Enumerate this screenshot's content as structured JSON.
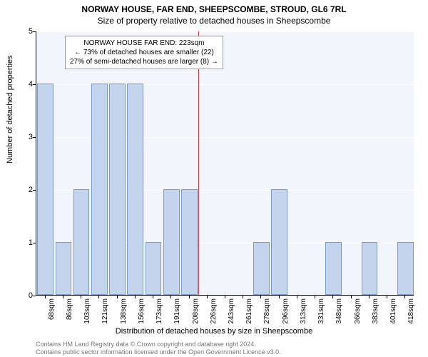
{
  "title1": "NORWAY HOUSE, FAR END, SHEEPSCOMBE, STROUD, GL6 7RL",
  "title2": "Size of property relative to detached houses in Sheepscombe",
  "ylabel": "Number of detached properties",
  "xlabel": "Distribution of detached houses by size in Sheepscombe",
  "chart": {
    "type": "histogram",
    "background_color": "#f2f6fc",
    "bar_fill": "#c3d4ec",
    "bar_border": "#7a9bc9",
    "grid_color": "#ffffff",
    "ref_line_color": "#d93333",
    "ylim": [
      0,
      5
    ],
    "ytick_step": 1,
    "xticks": [
      "68sqm",
      "86sqm",
      "103sqm",
      "121sqm",
      "138sqm",
      "156sqm",
      "173sqm",
      "191sqm",
      "208sqm",
      "226sqm",
      "243sqm",
      "261sqm",
      "278sqm",
      "296sqm",
      "313sqm",
      "331sqm",
      "348sqm",
      "366sqm",
      "383sqm",
      "401sqm",
      "418sqm"
    ],
    "bars": [
      4,
      1,
      2,
      4,
      4,
      4,
      1,
      2,
      2,
      0,
      0,
      0,
      1,
      2,
      0,
      0,
      1,
      0,
      1,
      0,
      1
    ],
    "ref_line_index": 9,
    "label_fontsize": 11,
    "tick_fontsize": 10,
    "title_fontsize": 12
  },
  "annotation": {
    "line1": "NORWAY HOUSE FAR END: 223sqm",
    "line2": "← 73% of detached houses are smaller (22)",
    "line3": "27% of semi-detached houses are larger (8) →"
  },
  "footer": {
    "line1": "Contains HM Land Registry data © Crown copyright and database right 2024.",
    "line2": "Contains public sector information licensed under the Open Government Licence v3.0."
  }
}
